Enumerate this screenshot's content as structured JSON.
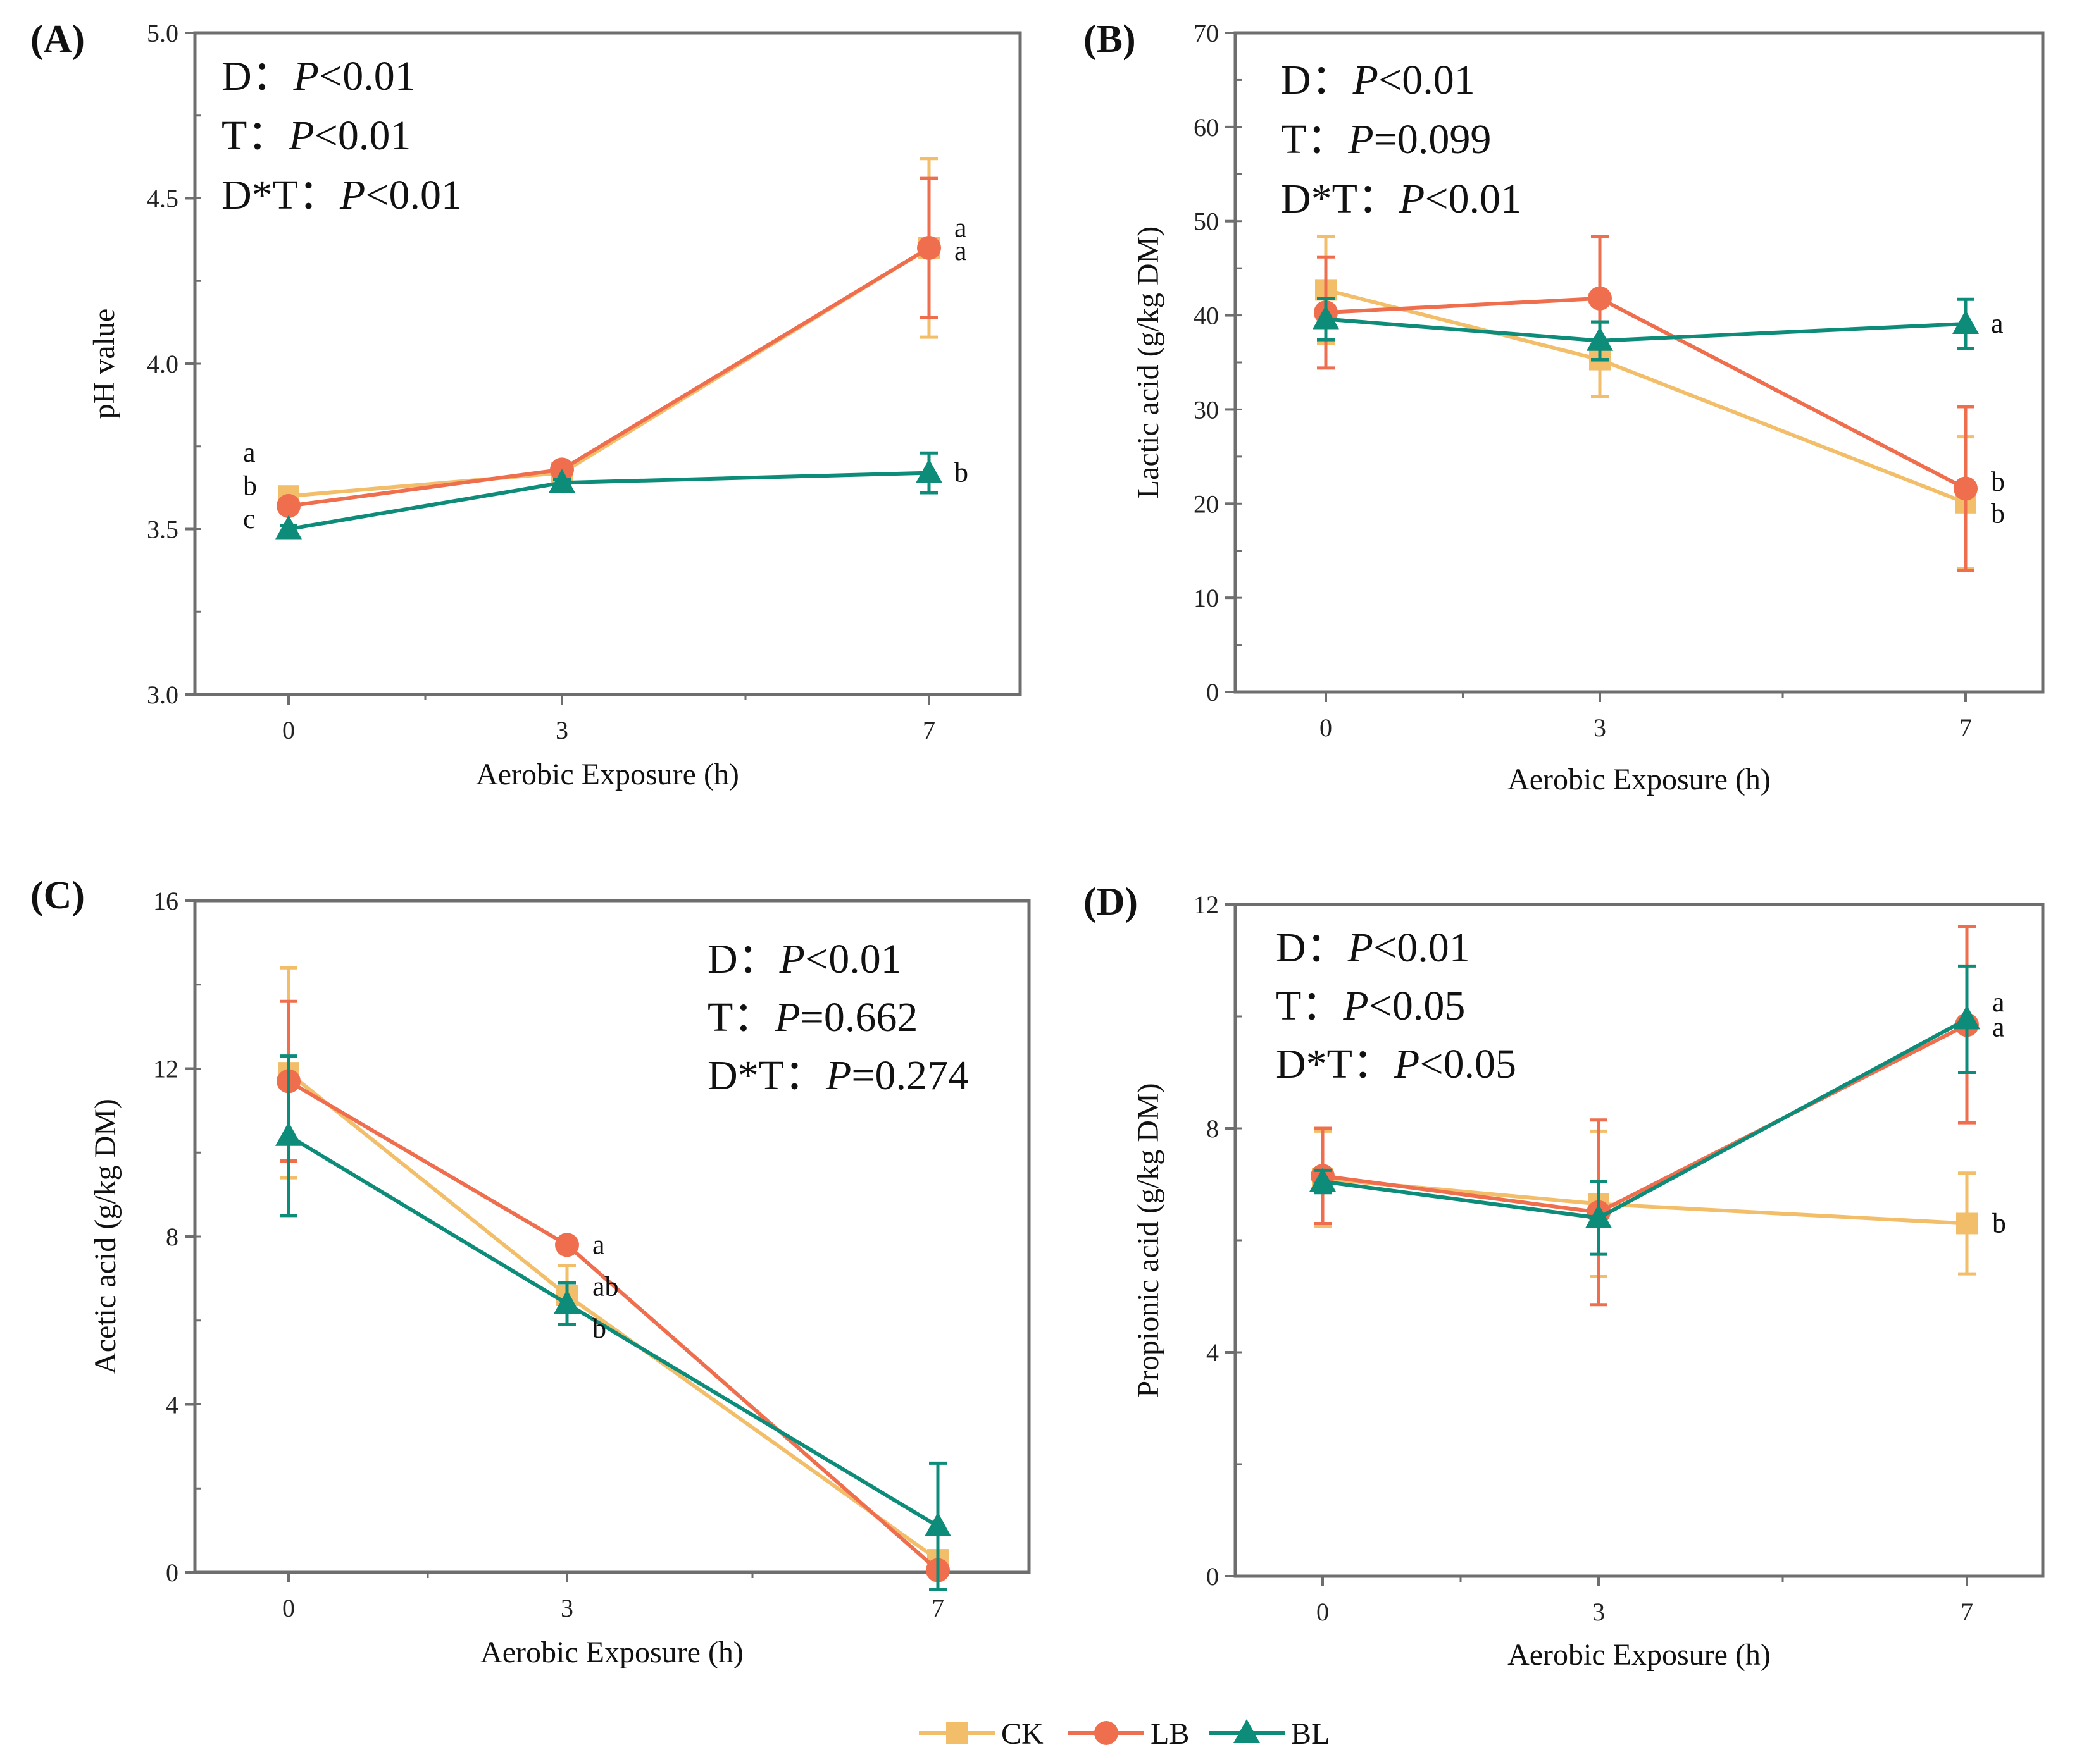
{
  "colors": {
    "CK": "#F2BE6A",
    "LB": "#EE6E4E",
    "BL": "#0E8C7A",
    "axis": "#6e6e6e"
  },
  "legend": [
    {
      "key": "CK",
      "label": "CK",
      "marker": "square"
    },
    {
      "key": "LB",
      "label": "LB",
      "marker": "circle"
    },
    {
      "key": "BL",
      "label": "BL",
      "marker": "triangle"
    }
  ],
  "chart_data": [
    {
      "panel": "(A)",
      "type": "line",
      "xlabel": "Aerobic Exposure (h)",
      "ylabel": "pH value",
      "x_ticks": [
        "0",
        "3",
        "7"
      ],
      "ylim": [
        3.0,
        5.0
      ],
      "yticks": [
        "3.0",
        "3.5",
        "4.0",
        "4.5",
        "5.0"
      ],
      "ytick_values": [
        3.0,
        3.5,
        4.0,
        4.5,
        5.0
      ],
      "minor_y_step": 0.25,
      "stats": [
        {
          "label": "D：",
          "p": "P",
          "rest": "<0.01"
        },
        {
          "label": "T：",
          "p": "P",
          "rest": "<0.01"
        },
        {
          "label": "D*T：",
          "p": "P",
          "rest": "<0.01"
        }
      ],
      "series": [
        {
          "name": "CK",
          "values": [
            3.6,
            3.67,
            4.35
          ],
          "err": [
            0.01,
            0.01,
            0.27
          ]
        },
        {
          "name": "LB",
          "values": [
            3.57,
            3.68,
            4.35
          ],
          "err": [
            0.01,
            0.01,
            0.21
          ]
        },
        {
          "name": "BL",
          "values": [
            3.5,
            3.64,
            3.67
          ],
          "err": [
            0.01,
            0.01,
            0.06
          ]
        }
      ],
      "sig": [
        {
          "text": "a",
          "x": 0,
          "y": 3.73,
          "side": "left"
        },
        {
          "text": "b",
          "x": 0,
          "y": 3.63,
          "side": "left"
        },
        {
          "text": "c",
          "x": 0,
          "y": 3.53,
          "side": "left"
        },
        {
          "text": "a",
          "x": 2,
          "y": 4.41,
          "side": "right"
        },
        {
          "text": "a",
          "x": 2,
          "y": 4.34,
          "side": "right"
        },
        {
          "text": "b",
          "x": 2,
          "y": 3.67,
          "side": "right"
        }
      ]
    },
    {
      "panel": "(B)",
      "type": "line",
      "xlabel": "Aerobic Exposure (h)",
      "ylabel": "Lactic acid (g/kg DM)",
      "x_ticks": [
        "0",
        "3",
        "7"
      ],
      "ylim": [
        0,
        70
      ],
      "yticks": [
        "0",
        "10",
        "20",
        "30",
        "40",
        "50",
        "60",
        "70"
      ],
      "ytick_values": [
        0,
        10,
        20,
        30,
        40,
        50,
        60,
        70
      ],
      "minor_y_step": 5,
      "stats": [
        {
          "label": "D：",
          "p": "P",
          "rest": "<0.01"
        },
        {
          "label": "T：",
          "p": "P",
          "rest": "=0.099"
        },
        {
          "label": "D*T：",
          "p": "P",
          "rest": "<0.01"
        }
      ],
      "series": [
        {
          "name": "CK",
          "values": [
            42.7,
            35.3,
            20.1
          ],
          "err": [
            5.7,
            3.9,
            7.0
          ]
        },
        {
          "name": "LB",
          "values": [
            40.3,
            41.8,
            21.6
          ],
          "err": [
            5.9,
            6.6,
            8.7
          ]
        },
        {
          "name": "BL",
          "values": [
            39.6,
            37.3,
            39.1
          ],
          "err": [
            2.2,
            2.0,
            2.6
          ]
        }
      ],
      "sig": [
        {
          "text": "a",
          "x": 2,
          "y": 39.1,
          "side": "right"
        },
        {
          "text": "b",
          "x": 2,
          "y": 22.3,
          "side": "right"
        },
        {
          "text": "b",
          "x": 2,
          "y": 18.9,
          "side": "right"
        }
      ]
    },
    {
      "panel": "(C)",
      "type": "line",
      "xlabel": "Aerobic Exposure (h)",
      "ylabel": "Acetic acid (g/kg DM)",
      "x_ticks": [
        "0",
        "3",
        "7"
      ],
      "ylim": [
        0,
        16
      ],
      "yticks": [
        "0",
        "4",
        "8",
        "12",
        "16"
      ],
      "ytick_values": [
        0,
        4,
        8,
        12,
        16
      ],
      "minor_y_step": 2,
      "stats": [
        {
          "label": "D：",
          "p": "P",
          "rest": "<0.01"
        },
        {
          "label": "T：",
          "p": "P",
          "rest": "=0.662"
        },
        {
          "label": "D*T：",
          "p": "P",
          "rest": "=0.274"
        }
      ],
      "series": [
        {
          "name": "CK",
          "values": [
            11.9,
            6.6,
            0.3
          ],
          "err": [
            2.5,
            0.7,
            0.1
          ]
        },
        {
          "name": "LB",
          "values": [
            11.7,
            7.8,
            0.05
          ],
          "err": [
            1.9,
            0.1,
            0.05
          ]
        },
        {
          "name": "BL",
          "values": [
            10.4,
            6.4,
            1.1
          ],
          "err": [
            1.9,
            0.5,
            1.5
          ]
        }
      ],
      "sig": [
        {
          "text": "a",
          "x": 1,
          "y": 7.8,
          "side": "right"
        },
        {
          "text": "ab",
          "x": 1,
          "y": 6.8,
          "side": "right"
        },
        {
          "text": "b",
          "x": 1,
          "y": 5.8,
          "side": "right"
        }
      ]
    },
    {
      "panel": "(D)",
      "type": "line",
      "xlabel": "Aerobic Exposure (h)",
      "ylabel": "Propionic acid (g/kg DM)",
      "x_ticks": [
        "0",
        "3",
        "7"
      ],
      "ylim": [
        0,
        12
      ],
      "yticks": [
        "0",
        "4",
        "8",
        "12"
      ],
      "ytick_values": [
        0,
        4,
        8,
        12
      ],
      "minor_y_step": 2,
      "stats": [
        {
          "label": "D：",
          "p": "P",
          "rest": "<0.01"
        },
        {
          "label": "T：",
          "p": "P",
          "rest": "<0.05"
        },
        {
          "label": "D*T：",
          "p": "P",
          "rest": "<0.05"
        }
      ],
      "series": [
        {
          "name": "CK",
          "values": [
            7.1,
            6.65,
            6.3
          ],
          "err": [
            0.85,
            1.3,
            0.9
          ]
        },
        {
          "name": "LB",
          "values": [
            7.15,
            6.5,
            9.85
          ],
          "err": [
            0.85,
            1.65,
            1.75
          ]
        },
        {
          "name": "BL",
          "values": [
            7.05,
            6.4,
            9.95
          ],
          "err": [
            0.2,
            0.65,
            0.95
          ]
        }
      ],
      "sig": [
        {
          "text": "a",
          "x": 2,
          "y": 10.25,
          "side": "right"
        },
        {
          "text": "a",
          "x": 2,
          "y": 9.8,
          "side": "right"
        },
        {
          "text": "b",
          "x": 2,
          "y": 6.3,
          "side": "right"
        }
      ]
    }
  ]
}
